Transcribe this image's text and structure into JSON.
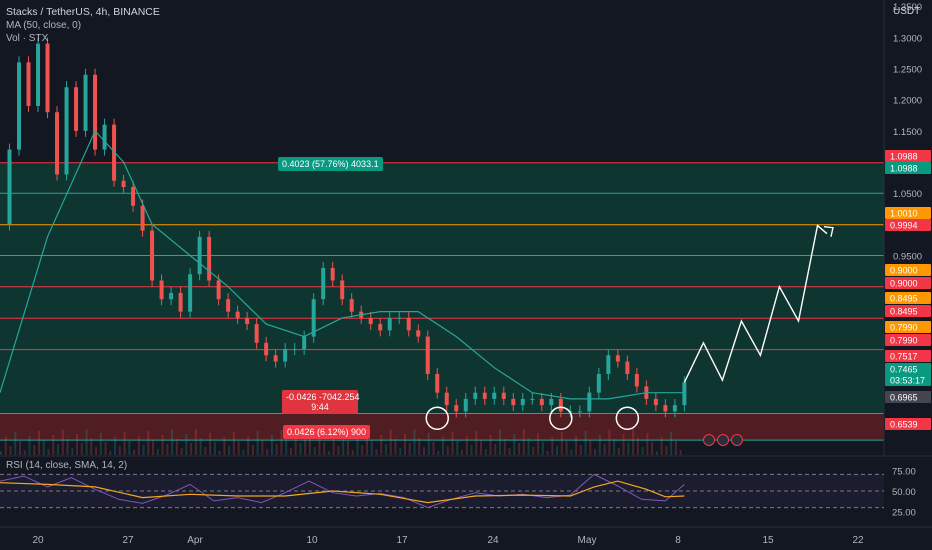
{
  "header": {
    "title": "Stacks / TetherUS, 4h, BINANCE",
    "ma_label": "MA (50, close, 0)",
    "vol_label": "Vol · STX",
    "rsi_label": "RSI (14, close, SMA, 14, 2)",
    "currency": "USDT"
  },
  "colors": {
    "background": "#131722",
    "up": "#26a69a",
    "down": "#ef5350",
    "ma": "#26a69a",
    "green_line": "#26a69a",
    "red_line": "#f23645",
    "orange_line": "#ff9800",
    "zone_green": "#0e3b33",
    "zone_red": "#5a1f22",
    "rsi_line": "#7e57c2",
    "rsi_sma": "#f5a623",
    "projection": "#ffffff"
  },
  "price_axis": {
    "ticks": [
      "1.3500",
      "1.3000",
      "1.2500",
      "1.2000",
      "1.1500",
      "1.0500",
      "0.9500"
    ],
    "labels": [
      {
        "text": "1.0988",
        "style": "red"
      },
      {
        "text": "1.0988",
        "style": "green"
      },
      {
        "text": "1.0010",
        "style": "orange"
      },
      {
        "text": "0.9994",
        "style": "red"
      },
      {
        "text": "0.9000",
        "style": "orange"
      },
      {
        "text": "0.9000",
        "style": "red"
      },
      {
        "text": "0.8495",
        "style": "orange"
      },
      {
        "text": "0.8495",
        "style": "red"
      },
      {
        "text": "0.7990",
        "style": "orange"
      },
      {
        "text": "0.7990",
        "style": "red"
      },
      {
        "text": "0.7517",
        "style": "red"
      },
      {
        "text": "0.7465",
        "style": "teal"
      },
      {
        "text": "03:53:17",
        "style": "teal"
      },
      {
        "text": "0.6965",
        "style": "gray"
      },
      {
        "text": "0.6539",
        "style": "red"
      }
    ]
  },
  "rsi_axis": {
    "ticks": [
      "75.00",
      "50.00",
      "25.00"
    ]
  },
  "time_axis": {
    "labels": [
      "20",
      "27",
      "Apr",
      "10",
      "17",
      "24",
      "May",
      "8",
      "15",
      "22"
    ]
  },
  "annotations": {
    "range_top": "0.4023 (57.76%) 4033.1",
    "range_mid_line1": "-0.0426 -7042.254",
    "range_mid_line2": "9:44",
    "range_bottom": "0.0426 (6.12%) 900"
  },
  "chart_data": {
    "type": "line",
    "title": "Stacks / TetherUS, 4h, BINANCE",
    "xlabel": "",
    "ylabel": "USDT",
    "ylim": [
      0.63,
      1.36
    ],
    "x_ticks": [
      "20",
      "27",
      "Apr",
      "10",
      "17",
      "24",
      "May",
      "8",
      "15",
      "22"
    ],
    "y_ticks": [
      1.35,
      1.3,
      1.25,
      1.2,
      1.15,
      1.05,
      0.95
    ],
    "price_path": [
      [
        0,
        1.0
      ],
      [
        2,
        1.12
      ],
      [
        4,
        1.26
      ],
      [
        6,
        1.19
      ],
      [
        8,
        1.29
      ],
      [
        10,
        1.18
      ],
      [
        12,
        1.08
      ],
      [
        14,
        1.22
      ],
      [
        16,
        1.15
      ],
      [
        18,
        1.24
      ],
      [
        20,
        1.12
      ],
      [
        22,
        1.16
      ],
      [
        24,
        1.07
      ],
      [
        26,
        1.06
      ],
      [
        28,
        1.03
      ],
      [
        30,
        0.99
      ],
      [
        32,
        0.91
      ],
      [
        34,
        0.88
      ],
      [
        36,
        0.89
      ],
      [
        38,
        0.86
      ],
      [
        40,
        0.92
      ],
      [
        42,
        0.98
      ],
      [
        44,
        0.91
      ],
      [
        46,
        0.88
      ],
      [
        48,
        0.86
      ],
      [
        50,
        0.85
      ],
      [
        52,
        0.84
      ],
      [
        54,
        0.81
      ],
      [
        56,
        0.79
      ],
      [
        58,
        0.78
      ],
      [
        60,
        0.8
      ],
      [
        62,
        0.8
      ],
      [
        64,
        0.82
      ],
      [
        66,
        0.88
      ],
      [
        68,
        0.93
      ],
      [
        70,
        0.91
      ],
      [
        72,
        0.88
      ],
      [
        74,
        0.86
      ],
      [
        76,
        0.85
      ],
      [
        78,
        0.84
      ],
      [
        80,
        0.83
      ],
      [
        82,
        0.85
      ],
      [
        84,
        0.85
      ],
      [
        86,
        0.83
      ],
      [
        88,
        0.82
      ],
      [
        90,
        0.76
      ],
      [
        92,
        0.73
      ],
      [
        94,
        0.71
      ],
      [
        96,
        0.7
      ],
      [
        98,
        0.72
      ],
      [
        100,
        0.73
      ],
      [
        102,
        0.72
      ],
      [
        104,
        0.73
      ],
      [
        106,
        0.72
      ],
      [
        108,
        0.71
      ],
      [
        110,
        0.72
      ],
      [
        112,
        0.72
      ],
      [
        114,
        0.71
      ],
      [
        116,
        0.72
      ],
      [
        118,
        0.7
      ],
      [
        120,
        0.7
      ],
      [
        122,
        0.7
      ],
      [
        124,
        0.73
      ],
      [
        126,
        0.76
      ],
      [
        128,
        0.79
      ],
      [
        130,
        0.78
      ],
      [
        132,
        0.76
      ],
      [
        134,
        0.74
      ],
      [
        136,
        0.72
      ],
      [
        138,
        0.71
      ],
      [
        140,
        0.7
      ],
      [
        142,
        0.71
      ],
      [
        144,
        0.7465
      ]
    ],
    "ma_path": [
      [
        0,
        0.73
      ],
      [
        10,
        0.98
      ],
      [
        20,
        1.15
      ],
      [
        26,
        1.1
      ],
      [
        32,
        1.0
      ],
      [
        40,
        0.95
      ],
      [
        48,
        0.9
      ],
      [
        56,
        0.84
      ],
      [
        64,
        0.82
      ],
      [
        72,
        0.85
      ],
      [
        80,
        0.86
      ],
      [
        88,
        0.86
      ],
      [
        96,
        0.82
      ],
      [
        104,
        0.77
      ],
      [
        112,
        0.73
      ],
      [
        120,
        0.72
      ],
      [
        128,
        0.72
      ],
      [
        136,
        0.73
      ],
      [
        144,
        0.73
      ]
    ],
    "projection": [
      [
        144,
        0.7465
      ],
      [
        148,
        0.81
      ],
      [
        152,
        0.75
      ],
      [
        156,
        0.845
      ],
      [
        160,
        0.79
      ],
      [
        164,
        0.9
      ],
      [
        168,
        0.845
      ],
      [
        172,
        0.998
      ],
      [
        174,
        0.985
      ]
    ],
    "horizontal_levels": [
      {
        "value": 1.0988,
        "color": "red"
      },
      {
        "value": 1.05,
        "color": "green"
      },
      {
        "value": 0.9994,
        "color": "orange"
      },
      {
        "value": 0.95,
        "color": "green"
      },
      {
        "value": 0.9,
        "color": "red"
      },
      {
        "value": 0.8495,
        "color": "red"
      },
      {
        "value": 0.799,
        "color": "red"
      },
      {
        "value": 0.6965,
        "color": "green"
      },
      {
        "value": 0.6539,
        "color": "green"
      }
    ],
    "zones": [
      {
        "from": 0.6965,
        "to": 1.0988,
        "type": "green"
      },
      {
        "from": 0.6539,
        "to": 0.6965,
        "type": "red"
      }
    ],
    "highlights": [
      {
        "x": 92,
        "y": 0.697
      },
      {
        "x": 118,
        "y": 0.697
      },
      {
        "x": 132,
        "y": 0.697
      }
    ],
    "rsi": {
      "ylim": [
        15,
        85
      ],
      "levels": [
        70,
        50,
        30
      ],
      "values": [
        [
          0,
          62
        ],
        [
          5,
          68
        ],
        [
          10,
          55
        ],
        [
          15,
          66
        ],
        [
          20,
          52
        ],
        [
          25,
          40
        ],
        [
          30,
          35
        ],
        [
          35,
          45
        ],
        [
          40,
          58
        ],
        [
          45,
          38
        ],
        [
          50,
          42
        ],
        [
          55,
          36
        ],
        [
          60,
          48
        ],
        [
          65,
          62
        ],
        [
          70,
          48
        ],
        [
          75,
          44
        ],
        [
          80,
          47
        ],
        [
          85,
          42
        ],
        [
          90,
          30
        ],
        [
          95,
          40
        ],
        [
          100,
          48
        ],
        [
          105,
          44
        ],
        [
          110,
          46
        ],
        [
          115,
          42
        ],
        [
          120,
          45
        ],
        [
          125,
          70
        ],
        [
          130,
          56
        ],
        [
          135,
          40
        ],
        [
          140,
          38
        ],
        [
          144,
          58
        ]
      ],
      "sma": [
        [
          0,
          60
        ],
        [
          10,
          58
        ],
        [
          20,
          55
        ],
        [
          30,
          42
        ],
        [
          40,
          46
        ],
        [
          50,
          44
        ],
        [
          60,
          44
        ],
        [
          70,
          50
        ],
        [
          80,
          46
        ],
        [
          90,
          36
        ],
        [
          100,
          44
        ],
        [
          110,
          45
        ],
        [
          120,
          44
        ],
        [
          125,
          55
        ],
        [
          130,
          62
        ],
        [
          136,
          52
        ],
        [
          140,
          43
        ],
        [
          144,
          44
        ]
      ]
    }
  }
}
